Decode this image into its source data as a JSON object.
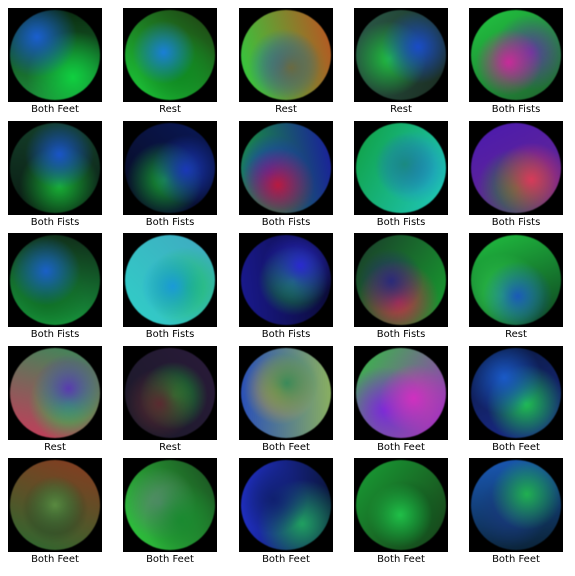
{
  "samples": [
    {
      "label": "Both Feet",
      "colors": [
        "#1e8a3a",
        "#1a5fd0",
        "#10d040",
        "#0a2a10"
      ]
    },
    {
      "label": "Rest",
      "colors": [
        "#1ad03a",
        "#1a7fd8",
        "#0e8a22",
        "#203a10"
      ]
    },
    {
      "label": "Rest",
      "colors": [
        "#2ad040",
        "#6a6a40",
        "#1070c8",
        "#c05020"
      ]
    },
    {
      "label": "Rest",
      "colors": [
        "#2a5a48",
        "#1a4cc8",
        "#20c040",
        "#1a2a20"
      ]
    },
    {
      "label": "Both Fists",
      "colors": [
        "#20c840",
        "#c82a9a",
        "#5a3aa0",
        "#206030"
      ]
    },
    {
      "label": "Both Fists",
      "colors": [
        "#14402a",
        "#1a55c8",
        "#18b035",
        "#0a1a12"
      ]
    },
    {
      "label": "Both Fists",
      "colors": [
        "#0a1858",
        "#1a38b8",
        "#18a030",
        "#080c20"
      ]
    },
    {
      "label": "Both Fists",
      "colors": [
        "#1a1aa0",
        "#b81a40",
        "#2030d0",
        "#18a030"
      ]
    },
    {
      "label": "Both Fists",
      "colors": [
        "#20c8c0",
        "#1a8a80",
        "#2080d8",
        "#10a040"
      ]
    },
    {
      "label": "Both Fists",
      "colors": [
        "#6a2a8a",
        "#d83a5a",
        "#2a8a30",
        "#4a1ab0"
      ]
    },
    {
      "label": "Both Fists",
      "colors": [
        "#18a040",
        "#1a60c8",
        "#0e6a22",
        "#102818"
      ]
    },
    {
      "label": "Both Fists",
      "colors": [
        "#30d0c8",
        "#1a9ad8",
        "#20c060",
        "#40a8c0"
      ]
    },
    {
      "label": "Both Fists",
      "colors": [
        "#1a1a90",
        "#2a2ad0",
        "#18a035",
        "#0a0a30"
      ]
    },
    {
      "label": "Both Fists",
      "colors": [
        "#1a3a2a",
        "#2a2a7a",
        "#c8304a",
        "#18a030"
      ]
    },
    {
      "label": "Rest",
      "colors": [
        "#20c040",
        "#1a5ab8",
        "#30d050",
        "#0e4020"
      ]
    },
    {
      "label": "Rest",
      "colors": [
        "#3a8a5a",
        "#5a3ab0",
        "#20d050",
        "#c83a5a"
      ]
    },
    {
      "label": "Rest",
      "colors": [
        "#2a1a3a",
        "#5a2a30",
        "#18a030",
        "#1a1a28"
      ]
    },
    {
      "label": "Both Feet",
      "colors": [
        "#8ab060",
        "#3a8a5a",
        "#c8a040",
        "#2a50b8"
      ]
    },
    {
      "label": "Both Feet",
      "colors": [
        "#b020d0",
        "#d030c0",
        "#7a2ad8",
        "#30c040"
      ]
    },
    {
      "label": "Both Feet",
      "colors": [
        "#1a2a8a",
        "#1a5ac8",
        "#20c050",
        "#0a1a40"
      ]
    },
    {
      "label": "Both Feet",
      "colors": [
        "#2a6a30",
        "#5a8a40",
        "#1a3a20",
        "#8a3a20"
      ]
    },
    {
      "label": "Both Feet",
      "colors": [
        "#30d040",
        "#1a8a30",
        "#5a8a70",
        "#1a4a20"
      ]
    },
    {
      "label": "Both Feet",
      "colors": [
        "#2030c8",
        "#102070",
        "#20a060",
        "#0a1438"
      ]
    },
    {
      "label": "Both Feet",
      "colors": [
        "#18a035",
        "#20c048",
        "#0e5a20",
        "#1a3a18"
      ]
    },
    {
      "label": "Both Feet",
      "colors": [
        "#1a5ab8",
        "#20b050",
        "#1a3a80",
        "#0a2030"
      ]
    }
  ]
}
